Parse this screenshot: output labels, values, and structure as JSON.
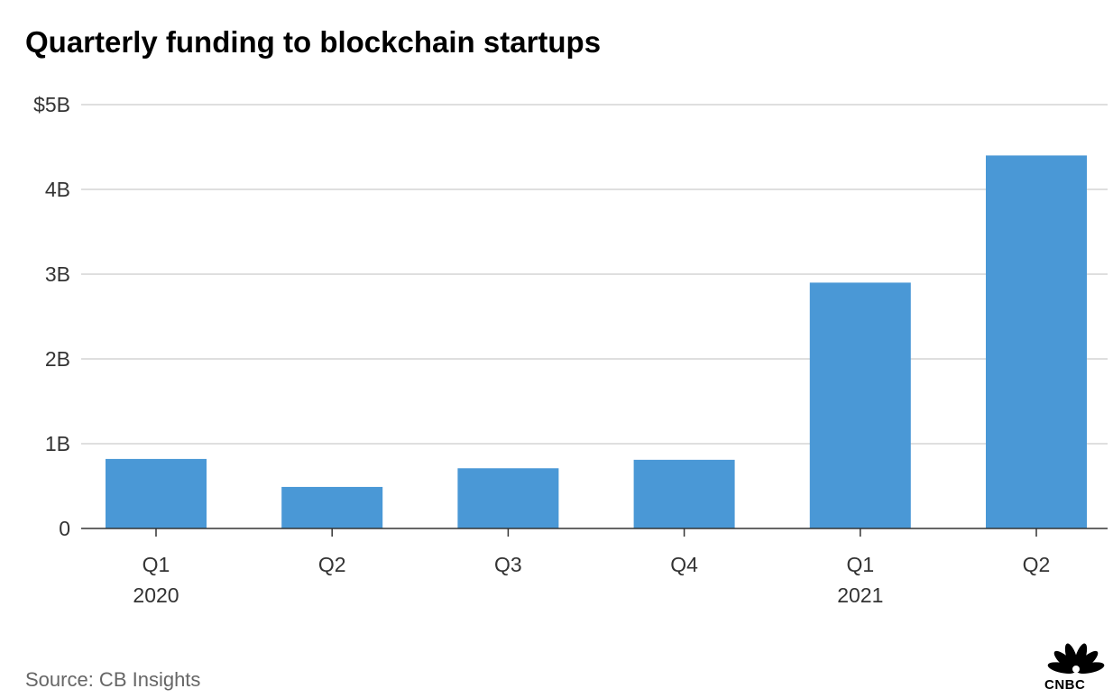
{
  "title": "Quarterly funding to blockchain startups",
  "source": "Source: CB Insights",
  "logo": {
    "text": "CNBC",
    "icon": "peacock-logo-icon"
  },
  "colors": {
    "bar": "#4a98d6",
    "grid": "#cccccc",
    "axis": "#333333"
  },
  "chart_data": {
    "type": "bar",
    "categories": [
      "Q1",
      "Q2",
      "Q3",
      "Q4",
      "Q1",
      "Q2"
    ],
    "category_groups": [
      "2020",
      "",
      "",
      "",
      "2021",
      ""
    ],
    "values": [
      0.82,
      0.49,
      0.71,
      0.81,
      2.9,
      4.4
    ],
    "ylim": [
      0,
      5
    ],
    "yticks": [
      0,
      1,
      2,
      3,
      4,
      5
    ],
    "ytick_labels": [
      "0",
      "1B",
      "2B",
      "3B",
      "4B",
      "$5B"
    ],
    "grid": true,
    "title": "Quarterly funding to blockchain startups",
    "xlabel": "",
    "ylabel": ""
  }
}
